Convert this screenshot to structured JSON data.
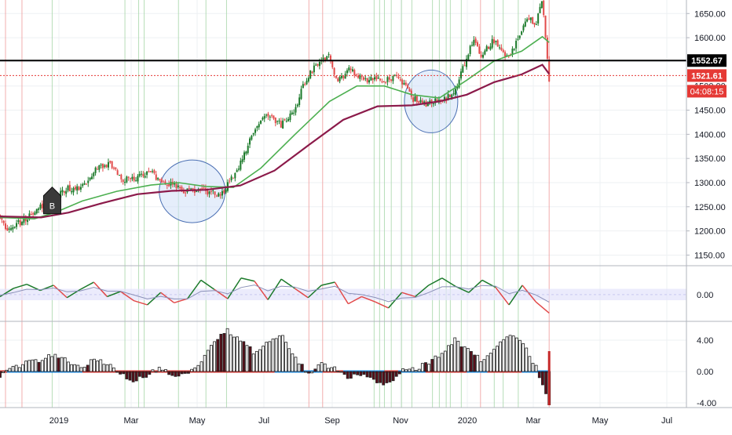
{
  "colors": {
    "background": "#ffffff",
    "grid": "#eef0f3",
    "axis_border": "#b2b5be",
    "axis_text": "#131722",
    "candle_up": "#1b7a2a",
    "candle_down": "#e24a4a",
    "ma_fast": "#4caf50",
    "ma_slow": "#8b1a4a",
    "support_line": "#000000",
    "price_dotted": "#e53935",
    "highlight_ellipse_fill": "#cfe0f7",
    "highlight_ellipse_stroke": "#4a6fb3",
    "vline_green": "#a5d6a7",
    "vline_red": "#ef9a9a",
    "osc_band": "#e3e3fb",
    "osc_signal": "#8a90b8",
    "osc2_bar_fill": "#ffffff",
    "osc2_bar_stroke": "#202020",
    "osc2_zero_blue": "#2196f3",
    "osc2_zero_red": "#e53935"
  },
  "price_axis": {
    "ticks": [
      "1650.00",
      "1600.00",
      "1550.00",
      "1500.00",
      "1450.00",
      "1400.00",
      "1350.00",
      "1300.00",
      "1250.00",
      "1200.00",
      "1150.00"
    ],
    "tick_values": [
      1650,
      1600,
      1550,
      1500,
      1450,
      1400,
      1350,
      1300,
      1250,
      1200,
      1150
    ],
    "range": [
      1128,
      1678
    ]
  },
  "labels": {
    "resistance": "1552.67",
    "last_price": "1521.61",
    "countdown": "04:08:15",
    "marker_b": "B"
  },
  "osc1_axis": {
    "ticks": [
      "0.00"
    ],
    "tick_values": [
      0
    ],
    "range": [
      -2.6,
      2.8
    ]
  },
  "osc2_axis": {
    "ticks": [
      "4.00",
      "0.00",
      "-4.00"
    ],
    "tick_values": [
      4,
      0,
      -4
    ],
    "range": [
      -4.6,
      6.4
    ]
  },
  "time_axis": {
    "labels": [
      "2019",
      "Mar",
      "May",
      "Jul",
      "Sep",
      "Nov",
      "2020",
      "Mar",
      "May",
      "Jul"
    ]
  },
  "chart_data": {
    "type": "candlestick",
    "series": [
      {
        "name": "Price",
        "role": "candles"
      },
      {
        "name": "",
        "role": "moving-average-fast",
        "points": [
          [
            0,
            1228
          ],
          [
            0.05,
            1225
          ],
          [
            0.08,
            1238
          ],
          [
            0.12,
            1262
          ],
          [
            0.17,
            1282
          ],
          [
            0.22,
            1295
          ],
          [
            0.26,
            1300
          ],
          [
            0.3,
            1292
          ],
          [
            0.34,
            1290
          ],
          [
            0.38,
            1330
          ],
          [
            0.43,
            1400
          ],
          [
            0.48,
            1468
          ],
          [
            0.52,
            1500
          ],
          [
            0.56,
            1500
          ],
          [
            0.6,
            1482
          ],
          [
            0.64,
            1475
          ],
          [
            0.68,
            1512
          ],
          [
            0.72,
            1552
          ],
          [
            0.76,
            1572
          ],
          [
            0.79,
            1602
          ],
          [
            0.8,
            1590
          ]
        ]
      },
      {
        "name": "",
        "role": "moving-average-slow",
        "points": [
          [
            0,
            1230
          ],
          [
            0.06,
            1228
          ],
          [
            0.1,
            1238
          ],
          [
            0.15,
            1258
          ],
          [
            0.2,
            1276
          ],
          [
            0.25,
            1283
          ],
          [
            0.3,
            1285
          ],
          [
            0.35,
            1294
          ],
          [
            0.4,
            1325
          ],
          [
            0.45,
            1378
          ],
          [
            0.5,
            1430
          ],
          [
            0.55,
            1458
          ],
          [
            0.6,
            1460
          ],
          [
            0.64,
            1468
          ],
          [
            0.68,
            1482
          ],
          [
            0.72,
            1508
          ],
          [
            0.76,
            1524
          ],
          [
            0.79,
            1544
          ],
          [
            0.8,
            1525
          ]
        ]
      }
    ],
    "candle_path": [
      [
        0,
        1232
      ],
      [
        0.01,
        1205
      ],
      [
        0.03,
        1218
      ],
      [
        0.05,
        1238
      ],
      [
        0.07,
        1262
      ],
      [
        0.1,
        1288
      ],
      [
        0.12,
        1290
      ],
      [
        0.14,
        1328
      ],
      [
        0.16,
        1340
      ],
      [
        0.18,
        1305
      ],
      [
        0.2,
        1310
      ],
      [
        0.22,
        1320
      ],
      [
        0.24,
        1300
      ],
      [
        0.27,
        1282
      ],
      [
        0.3,
        1283
      ],
      [
        0.32,
        1272
      ],
      [
        0.33,
        1290
      ],
      [
        0.35,
        1338
      ],
      [
        0.37,
        1410
      ],
      [
        0.39,
        1440
      ],
      [
        0.41,
        1420
      ],
      [
        0.43,
        1450
      ],
      [
        0.44,
        1500
      ],
      [
        0.46,
        1545
      ],
      [
        0.48,
        1560
      ],
      [
        0.49,
        1510
      ],
      [
        0.51,
        1535
      ],
      [
        0.53,
        1515
      ],
      [
        0.56,
        1510
      ],
      [
        0.58,
        1522
      ],
      [
        0.6,
        1475
      ],
      [
        0.62,
        1462
      ],
      [
        0.64,
        1470
      ],
      [
        0.66,
        1480
      ],
      [
        0.67,
        1520
      ],
      [
        0.69,
        1600
      ],
      [
        0.7,
        1565
      ],
      [
        0.72,
        1595
      ],
      [
        0.74,
        1560
      ],
      [
        0.76,
        1610
      ],
      [
        0.77,
        1645
      ],
      [
        0.78,
        1625
      ],
      [
        0.79,
        1678
      ],
      [
        0.8,
        1510
      ]
    ],
    "annotations": [
      {
        "type": "horizontal-line",
        "value": 1552.67,
        "label": "1552.67"
      },
      {
        "type": "horizontal-dotted-line",
        "value": 1521.61,
        "label": "1521.61"
      },
      {
        "type": "highlight-ellipse",
        "cx": 0.28,
        "cy": 1282
      },
      {
        "type": "highlight-ellipse",
        "cx": 0.628,
        "cy": 1468
      },
      {
        "type": "marker",
        "text": "B",
        "x": 0.076,
        "y": 1255
      }
    ],
    "oscillator_1": {
      "values": [
        -0.2,
        0.6,
        1.0,
        0.4,
        0.9,
        -0.3,
        0.5,
        1.2,
        -0.2,
        0.3,
        -0.6,
        -1.0,
        0.2,
        -0.8,
        -0.4,
        1.4,
        0.5,
        -0.4,
        1.6,
        1.3,
        -0.5,
        1.5,
        0.6,
        -0.3,
        0.9,
        1.2,
        -0.9,
        -0.2,
        -0.7,
        -1.3,
        0.2,
        -0.2,
        0.9,
        1.6,
        0.8,
        0.2,
        1.4,
        0.7,
        -1.0,
        0.9,
        -0.7,
        -1.8
      ]
    },
    "oscillator_2": {
      "values": [
        -0.6,
        0.4,
        1.1,
        1.5,
        2.1,
        1.6,
        0.3,
        1.6,
        1.1,
        -0.3,
        -1.2,
        -0.4,
        0.6,
        -0.6,
        -0.2,
        1.3,
        3.8,
        5.2,
        4.1,
        2.3,
        3.6,
        4.8,
        2.1,
        -0.5,
        0.9,
        0.5,
        -0.8,
        -0.4,
        -1.1,
        -1.8,
        0.1,
        0.3,
        1.2,
        2.3,
        4.1,
        2.6,
        1.4,
        3.2,
        4.9,
        3.6,
        0.7,
        -4.3
      ]
    },
    "x_labels": [
      "2019",
      "Mar",
      "May",
      "Jul",
      "Sep",
      "Nov",
      "2020",
      "Mar",
      "May",
      "Jul"
    ],
    "y_ticks": [
      1150,
      1200,
      1250,
      1300,
      1350,
      1400,
      1450,
      1500,
      1550,
      1600,
      1650
    ],
    "grid": true
  }
}
